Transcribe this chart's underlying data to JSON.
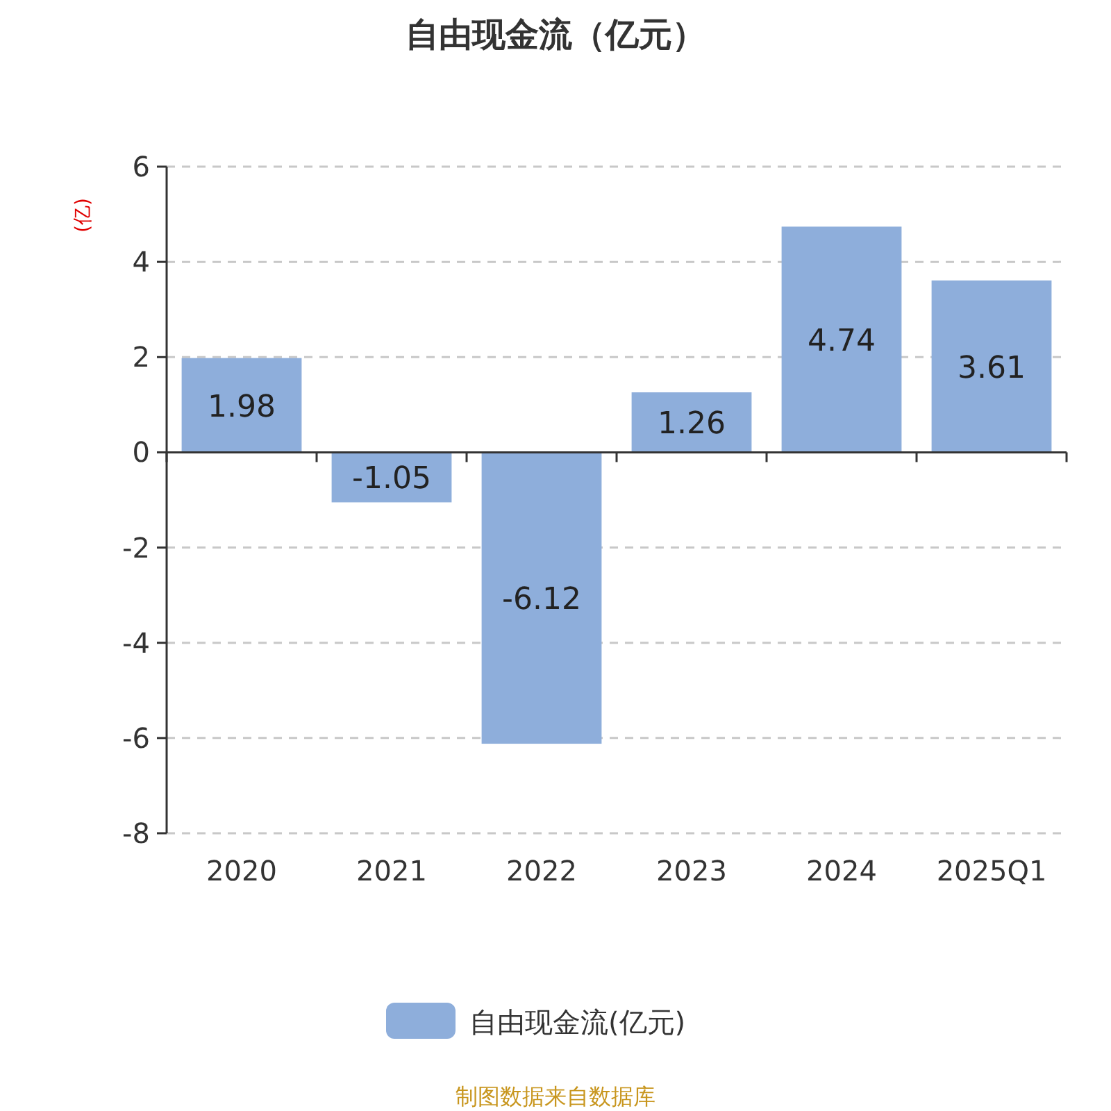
{
  "chart_data": {
    "type": "bar",
    "title": "自由现金流（亿元）",
    "ylabel": "(亿)",
    "categories": [
      "2020",
      "2021",
      "2022",
      "2023",
      "2024",
      "2025Q1"
    ],
    "series": [
      {
        "name": "自由现金流(亿元)",
        "color": "#8eaedb",
        "values": [
          1.98,
          -1.05,
          -6.12,
          1.26,
          4.74,
          3.61
        ]
      }
    ],
    "ylim": [
      -8,
      6
    ],
    "yticks": [
      -8,
      -6,
      -4,
      -2,
      0,
      2,
      4,
      6
    ],
    "grid": "y",
    "legend": "bottom",
    "data_labels": true,
    "annotations": [
      "制图数据来自数据库"
    ]
  }
}
